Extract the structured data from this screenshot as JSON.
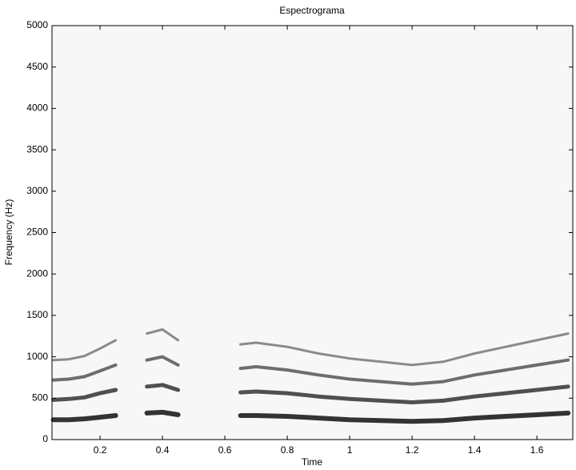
{
  "chart_data": {
    "type": "spectrogram",
    "title": "Espectrograma",
    "x_label": "Time",
    "y_label": "Frequency (Hz)",
    "xlim": [
      0.046,
      1.715
    ],
    "ylim": [
      0,
      5000
    ],
    "xticks": [
      0.2,
      0.4,
      0.6,
      0.8,
      1,
      1.2,
      1.4,
      1.6
    ],
    "yticks": [
      0,
      500,
      1000,
      1500,
      2000,
      2500,
      3000,
      3500,
      4000,
      4500,
      5000
    ],
    "x": [
      0.05,
      0.1,
      0.15,
      0.2,
      0.25,
      0.3,
      0.35,
      0.4,
      0.45,
      0.5,
      0.55,
      0.6,
      0.65,
      0.7,
      0.8,
      0.9,
      1.0,
      1.1,
      1.2,
      1.3,
      1.4,
      1.5,
      1.6,
      1.7
    ],
    "series": [
      {
        "color": "#111111",
        "values": [
          240,
          240,
          250,
          270,
          290,
          null,
          320,
          330,
          300,
          null,
          null,
          null,
          290,
          290,
          280,
          260,
          240,
          230,
          220,
          230,
          260,
          280,
          300,
          320
        ]
      },
      {
        "color": "#333333",
        "values": [
          480,
          490,
          510,
          560,
          600,
          null,
          640,
          660,
          600,
          null,
          null,
          null,
          570,
          580,
          560,
          520,
          490,
          470,
          450,
          470,
          520,
          560,
          600,
          640
        ]
      },
      {
        "color": "#555555",
        "values": [
          720,
          730,
          760,
          830,
          900,
          null,
          960,
          1000,
          900,
          null,
          null,
          null,
          860,
          880,
          840,
          780,
          730,
          700,
          670,
          700,
          780,
          840,
          900,
          960
        ]
      },
      {
        "color": "#777777",
        "values": [
          960,
          970,
          1010,
          1100,
          1200,
          null,
          1280,
          1330,
          1200,
          null,
          null,
          null,
          1150,
          1170,
          1120,
          1040,
          980,
          940,
          900,
          940,
          1040,
          1120,
          1200,
          1280
        ]
      }
    ]
  }
}
